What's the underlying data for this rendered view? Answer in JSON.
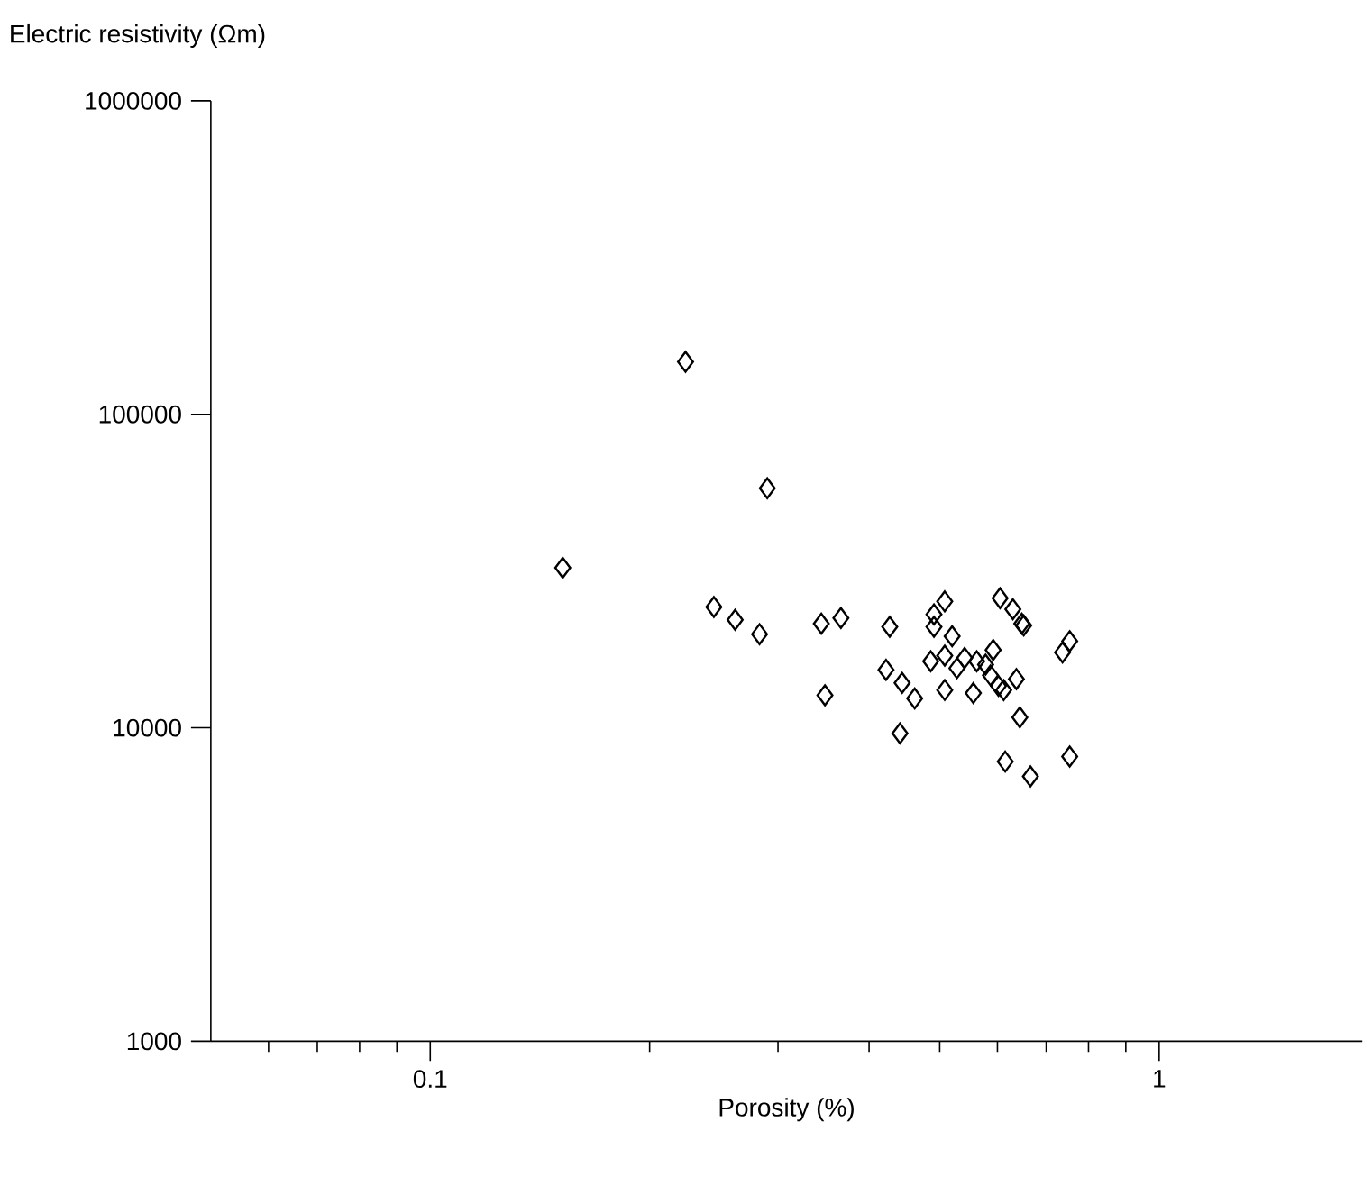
{
  "chart_data": {
    "type": "scatter",
    "xlabel": "Porosity (%)",
    "ylabel": "Electric resistivity (Ωm)",
    "log": "xy",
    "marker": "diamond",
    "xlim": [
      0.05,
      1.9
    ],
    "ylim": [
      1000,
      1000000
    ],
    "xticks": [
      {
        "value": 0.06,
        "label": null
      },
      {
        "value": 0.07,
        "label": null
      },
      {
        "value": 0.08,
        "label": null
      },
      {
        "value": 0.09,
        "label": null
      },
      0.1,
      {
        "value": 0.2,
        "label": null
      },
      {
        "value": 0.3,
        "label": null
      },
      {
        "value": 0.4,
        "label": null
      },
      {
        "value": 0.5,
        "label": null
      },
      {
        "value": 0.6,
        "label": null
      },
      {
        "value": 0.7,
        "label": null
      },
      {
        "value": 0.8,
        "label": null
      },
      {
        "value": 0.9,
        "label": null
      },
      1
    ],
    "yticks": [
      1000,
      10000,
      100000,
      1000000
    ],
    "series": [
      {
        "color": "#000000",
        "x": [
          0.152,
          0.224,
          0.29,
          0.245,
          0.262,
          0.283,
          0.344,
          0.366,
          0.348,
          0.427,
          0.422,
          0.444,
          0.462,
          0.441,
          0.491,
          0.508,
          0.491,
          0.52,
          0.486,
          0.508,
          0.528,
          0.541,
          0.508,
          0.556,
          0.562,
          0.578,
          0.592,
          0.587,
          0.602,
          0.612,
          0.637,
          0.605,
          0.63,
          0.648,
          0.652,
          0.644,
          0.615,
          0.666,
          0.737,
          0.754,
          0.754
        ],
        "values": [
          32400,
          147000,
          58100,
          24300,
          22100,
          19900,
          21500,
          22400,
          12700,
          21000,
          15300,
          13900,
          12400,
          9600,
          23000,
          25300,
          21000,
          19600,
          16300,
          17000,
          15500,
          16700,
          13200,
          12900,
          16300,
          15900,
          17700,
          14700,
          13600,
          13200,
          14300,
          25900,
          23900,
          21500,
          21200,
          10800,
          7800,
          7000,
          17400,
          18900,
          8100
        ]
      }
    ]
  }
}
